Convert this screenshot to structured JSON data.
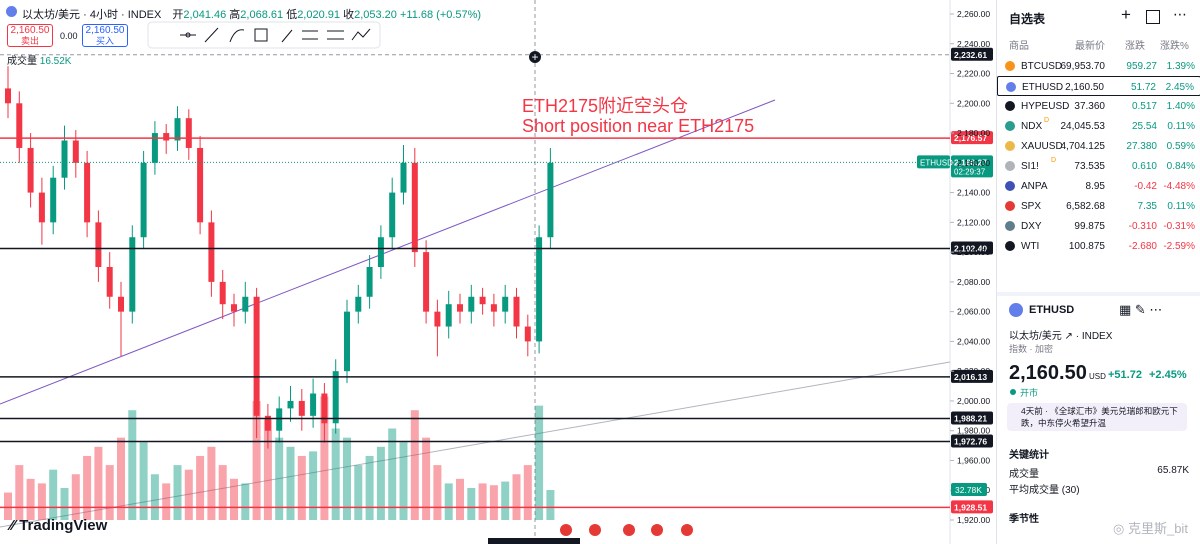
{
  "header": {
    "symbol": "以太坊/美元 · 4小时 · INDEX",
    "ohlc": [
      {
        "key": "开",
        "value": "2,041.46"
      },
      {
        "key": "高",
        "value": "2,068.61"
      },
      {
        "key": "低",
        "value": "2,020.91"
      },
      {
        "key": "收",
        "value": "2,053.20"
      }
    ],
    "change": "+11.68 (+0.57%)",
    "sell": {
      "price": "2,160.50",
      "label": "卖出"
    },
    "spread": "0.00",
    "buy": {
      "price": "2,160.50",
      "label": "买入"
    },
    "volume_title": "成交量",
    "volume_value": "16.52K"
  },
  "chart": {
    "ylim": [
      1920,
      2260
    ],
    "yticks": [
      {
        "value": 2260,
        "label": "2,260.00"
      },
      {
        "value": 2240,
        "label": "2,240.00"
      },
      {
        "value": 2220,
        "label": "2,220.00"
      },
      {
        "value": 2200,
        "label": "2,200.00"
      },
      {
        "value": 2180,
        "label": "2,180.00"
      },
      {
        "value": 2160,
        "label": "2,160.00"
      },
      {
        "value": 2140,
        "label": "2,140.00"
      },
      {
        "value": 2120,
        "label": "2,120.00"
      },
      {
        "value": 2100,
        "label": "2,100.00"
      },
      {
        "value": 2080,
        "label": "2,080.00"
      },
      {
        "value": 2060,
        "label": "2,060.00"
      },
      {
        "value": 2040,
        "label": "2,040.00"
      },
      {
        "value": 2020,
        "label": "2,020.00"
      },
      {
        "value": 2000,
        "label": "2,000.00"
      },
      {
        "value": 1980,
        "label": "1,980.00"
      },
      {
        "value": 1960,
        "label": "1,960.00"
      },
      {
        "value": 1940,
        "label": "1,940.00"
      },
      {
        "value": 1920,
        "label": "1,920.00"
      }
    ],
    "candles": [
      [
        2210,
        2225,
        2190,
        2200
      ],
      [
        2200,
        2208,
        2160,
        2170
      ],
      [
        2170,
        2180,
        2130,
        2140
      ],
      [
        2140,
        2150,
        2105,
        2120
      ],
      [
        2120,
        2158,
        2112,
        2150
      ],
      [
        2150,
        2185,
        2142,
        2175
      ],
      [
        2175,
        2182,
        2150,
        2160
      ],
      [
        2160,
        2168,
        2110,
        2120
      ],
      [
        2120,
        2128,
        2080,
        2090
      ],
      [
        2090,
        2100,
        2062,
        2070
      ],
      [
        2070,
        2080,
        2030,
        2060
      ],
      [
        2060,
        2118,
        2052,
        2110
      ],
      [
        2110,
        2168,
        2102,
        2160
      ],
      [
        2160,
        2188,
        2152,
        2180
      ],
      [
        2180,
        2186,
        2166,
        2175
      ],
      [
        2175,
        2198,
        2168,
        2190
      ],
      [
        2190,
        2196,
        2162,
        2170
      ],
      [
        2170,
        2178,
        2112,
        2120
      ],
      [
        2120,
        2128,
        2070,
        2080
      ],
      [
        2080,
        2088,
        2055,
        2065
      ],
      [
        2065,
        2072,
        2050,
        2060
      ],
      [
        2060,
        2080,
        2052,
        2070
      ],
      [
        2070,
        2076,
        1975,
        1990
      ],
      [
        1990,
        1998,
        1968,
        1980
      ],
      [
        1980,
        2003,
        1972,
        1995
      ],
      [
        1995,
        2010,
        1986,
        2000
      ],
      [
        2000,
        2008,
        1980,
        1990
      ],
      [
        1990,
        2015,
        1982,
        2005
      ],
      [
        2005,
        2012,
        1972,
        1985
      ],
      [
        1985,
        2028,
        1978,
        2020
      ],
      [
        2020,
        2068,
        2012,
        2060
      ],
      [
        2060,
        2078,
        2052,
        2070
      ],
      [
        2070,
        2098,
        2062,
        2090
      ],
      [
        2090,
        2118,
        2082,
        2110
      ],
      [
        2110,
        2150,
        2102,
        2140
      ],
      [
        2140,
        2172,
        2132,
        2160
      ],
      [
        2160,
        2170,
        2090,
        2100
      ],
      [
        2100,
        2108,
        2052,
        2060
      ],
      [
        2060,
        2068,
        2030,
        2050
      ],
      [
        2050,
        2074,
        2042,
        2065
      ],
      [
        2065,
        2072,
        2052,
        2060
      ],
      [
        2060,
        2078,
        2052,
        2070
      ],
      [
        2070,
        2076,
        2058,
        2065
      ],
      [
        2065,
        2072,
        2050,
        2060
      ],
      [
        2060,
        2078,
        2052,
        2070
      ],
      [
        2070,
        2076,
        2042,
        2050
      ],
      [
        2050,
        2058,
        2030,
        2040
      ],
      [
        2040,
        2118,
        2032,
        2110
      ],
      [
        2110,
        2170,
        2102,
        2160
      ]
    ],
    "volumes": [
      30,
      60,
      45,
      40,
      55,
      35,
      50,
      70,
      80,
      60,
      90,
      120,
      85,
      50,
      40,
      60,
      55,
      70,
      80,
      60,
      45,
      40,
      130,
      110,
      90,
      80,
      70,
      75,
      135,
      100,
      90,
      60,
      70,
      80,
      100,
      85,
      120,
      90,
      60,
      40,
      45,
      35,
      40,
      38,
      42,
      50,
      60,
      125,
      32.78
    ],
    "volume_lim": [
      0,
      553
    ],
    "volume_label": "32.78K",
    "levels": [
      {
        "value": 2232.61,
        "label": "2,232.61",
        "color": "#131722",
        "style": "dashed"
      },
      {
        "value": 2176.57,
        "label": "2,176.57",
        "color": "#f23645",
        "style": "solid"
      },
      {
        "value": 2102.4,
        "label": "2,102.40",
        "color": "#131722",
        "style": "solid"
      },
      {
        "value": 2016.13,
        "label": "2,016.13",
        "color": "#131722",
        "style": "solid"
      },
      {
        "value": 1988.21,
        "label": "1,988.21",
        "color": "#131722",
        "style": "solid"
      },
      {
        "value": 1972.76,
        "label": "1,972.76",
        "color": "#131722",
        "style": "solid"
      },
      {
        "value": 1928.51,
        "label": "1,928.51",
        "color": "#f23645",
        "style": "solid"
      }
    ],
    "current": {
      "value": 2160.27,
      "label": "2,160.27",
      "symbol": "ETHUSD",
      "countdown": "02:29:37"
    },
    "annotation": [
      "ETH2175附近空头仓",
      "Short position near ETH2175"
    ]
  },
  "logo": "TradingView",
  "watermark": "克里斯_bit",
  "watchlist": {
    "title": "自选表",
    "columns": [
      "商品",
      "最新价",
      "涨跌",
      "涨跌%"
    ],
    "rows": [
      {
        "symbol": "BTCUSD",
        "last": "69,953.70",
        "change": "959.27",
        "pct": "1.39%",
        "icon": "#f7931a"
      },
      {
        "symbol": "ETHUSD",
        "last": "2,160.50",
        "change": "51.72",
        "pct": "2.45%",
        "icon": "#627eea"
      },
      {
        "symbol": "HYPEUSD",
        "last": "37.360",
        "change": "0.517",
        "pct": "1.40%",
        "icon": "#131722"
      },
      {
        "symbol": "NDX",
        "last": "24,045.53",
        "change": "25.54",
        "pct": "0.11%",
        "icon": "#2a9d8f",
        "tag": "D"
      },
      {
        "symbol": "XAUUSD",
        "last": "4,704.125",
        "change": "27.380",
        "pct": "0.59%",
        "icon": "#e9b949"
      },
      {
        "symbol": "SI1!",
        "last": "73.535",
        "change": "0.610",
        "pct": "0.84%",
        "icon": "#b0b3b8",
        "tag": "D"
      },
      {
        "symbol": "ANPA",
        "last": "8.95",
        "change": "-0.42",
        "pct": "-4.48%",
        "icon": "#3f51b5"
      },
      {
        "symbol": "SPX",
        "last": "6,582.68",
        "change": "7.35",
        "pct": "0.11%",
        "icon": "#e53935"
      },
      {
        "symbol": "DXY",
        "last": "99.875",
        "change": "-0.310",
        "pct": "-0.31%",
        "icon": "#607d8b"
      },
      {
        "symbol": "WTI",
        "last": "100.875",
        "change": "-2.680",
        "pct": "-2.59%",
        "icon": "#131722"
      }
    ]
  },
  "detail": {
    "symbol": "ETHUSD",
    "name": "以太坊/美元",
    "exchange": "INDEX",
    "category": "指数 · 加密",
    "price": "2,160.50",
    "currency": "USD",
    "change": "+51.72",
    "pct": "+2.45%",
    "status": "开市",
    "news": "4天前 · 《全球汇市》美元兑瑞郎和欧元下跌，中东停火希望升温",
    "stats_title": "关键统计",
    "stats": [
      {
        "label": "成交量",
        "value": "65.87K"
      },
      {
        "label": "平均成交量 (30)",
        "value": ""
      }
    ],
    "seasonal": "季节性"
  }
}
